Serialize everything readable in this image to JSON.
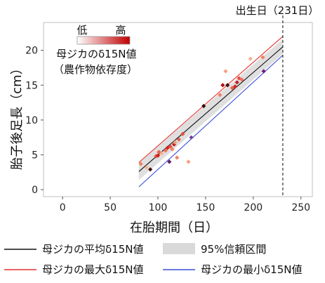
{
  "chart_data": {
    "type": "scatter",
    "xlabel": "在胎期間（日）",
    "ylabel": "胎子後足長（cm）",
    "x_ticks": [
      0,
      50,
      100,
      150,
      200,
      250
    ],
    "y_ticks": [
      0,
      5,
      10,
      15,
      20
    ],
    "xlim": [
      -20,
      262
    ],
    "ylim": [
      -1,
      24
    ],
    "birth_line": {
      "x": 231,
      "label": "出生日（231日）"
    },
    "color_scale": {
      "title_line1": "母ジカのδ15N値",
      "title_line2": "（農作物依存度）",
      "low_label": "低",
      "high_label": "高",
      "low_color": "#ffffff",
      "high_color": "#c00000"
    },
    "legend": {
      "mean_label": "母ジカの平均δ15N値",
      "ci_label": "95%信頼区間",
      "max_label": "母ジカの最大δ15N値",
      "min_label": "母ジカの最小δ15N値",
      "mean_color": "#111111",
      "max_color": "#e83030",
      "min_color": "#3a4fd8",
      "ci_color": "#d9d9d9"
    },
    "lines": {
      "mean": {
        "x": [
          80,
          231
        ],
        "y": [
          2.6,
          20.5
        ]
      },
      "max": {
        "x": [
          80,
          231
        ],
        "y": [
          3.9,
          22.0
        ]
      },
      "min": {
        "x": [
          80,
          231
        ],
        "y": [
          0.4,
          19.3
        ]
      },
      "ci_upper": {
        "x": [
          80,
          231
        ],
        "y": [
          3.9,
          21.6
        ]
      },
      "ci_lower": {
        "x": [
          80,
          231
        ],
        "y": [
          1.4,
          19.5
        ]
      }
    },
    "points": [
      {
        "x": 82,
        "y": 3.7,
        "color": "#f28060"
      },
      {
        "x": 88,
        "y": 3.2,
        "color": "#f4b090"
      },
      {
        "x": 92,
        "y": 2.9,
        "color": "#401010"
      },
      {
        "x": 98,
        "y": 4.8,
        "color": "#e85040"
      },
      {
        "x": 100,
        "y": 4.9,
        "color": "#d02020"
      },
      {
        "x": 101,
        "y": 5.4,
        "color": "#e86050"
      },
      {
        "x": 104,
        "y": 5.2,
        "color": "#f4b090"
      },
      {
        "x": 108,
        "y": 5.6,
        "color": "#f07060"
      },
      {
        "x": 110,
        "y": 6.0,
        "color": "#d02020"
      },
      {
        "x": 112,
        "y": 4.0,
        "color": "#602060"
      },
      {
        "x": 113,
        "y": 6.2,
        "color": "#e85040"
      },
      {
        "x": 115,
        "y": 5.8,
        "color": "#f28060"
      },
      {
        "x": 117,
        "y": 6.5,
        "color": "#c02020"
      },
      {
        "x": 118,
        "y": 6.8,
        "color": "#f4a080"
      },
      {
        "x": 120,
        "y": 4.6,
        "color": "#f28060"
      },
      {
        "x": 122,
        "y": 7.2,
        "color": "#e86050"
      },
      {
        "x": 126,
        "y": 8.0,
        "color": "#e85040"
      },
      {
        "x": 132,
        "y": 4.0,
        "color": "#f4a080"
      },
      {
        "x": 135,
        "y": 7.5,
        "color": "#7040a0"
      },
      {
        "x": 148,
        "y": 12.0,
        "color": "#300808"
      },
      {
        "x": 165,
        "y": 13.6,
        "color": "#f28060"
      },
      {
        "x": 168,
        "y": 15.0,
        "color": "#b01010"
      },
      {
        "x": 171,
        "y": 17.0,
        "color": "#f4a080"
      },
      {
        "x": 173,
        "y": 15.0,
        "color": "#401010"
      },
      {
        "x": 178,
        "y": 14.6,
        "color": "#e86050"
      },
      {
        "x": 181,
        "y": 14.8,
        "color": "#d02020"
      },
      {
        "x": 183,
        "y": 15.4,
        "color": "#c02020"
      },
      {
        "x": 185,
        "y": 16.0,
        "color": "#e85040"
      },
      {
        "x": 188,
        "y": 15.8,
        "color": "#f07060"
      },
      {
        "x": 197,
        "y": 18.8,
        "color": "#f4b090"
      },
      {
        "x": 210,
        "y": 19.0,
        "color": "#f28060"
      },
      {
        "x": 211,
        "y": 17.0,
        "color": "#6a1a7a"
      }
    ]
  }
}
